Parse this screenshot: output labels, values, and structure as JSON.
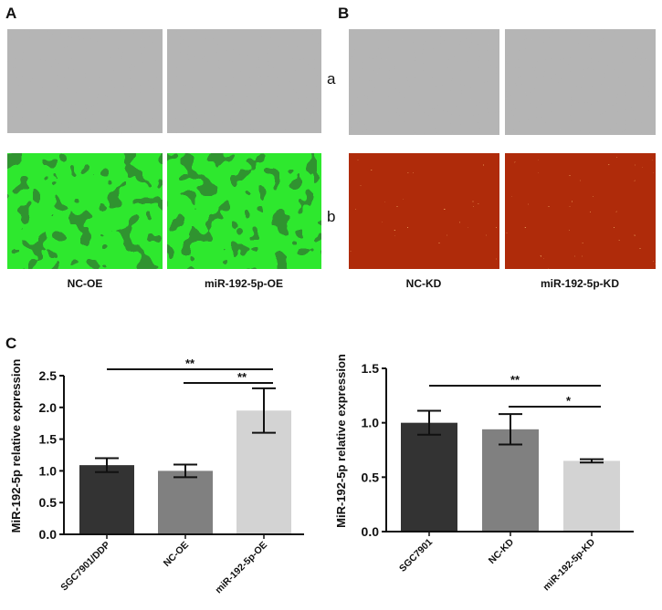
{
  "panels": {
    "A": "A",
    "B": "B",
    "C": "C",
    "row_a": "a",
    "row_b": "b"
  },
  "image_labels": [
    "NC-OE",
    "miR-192-5p-OE",
    "NC-KD",
    "miR-192-5p-KD"
  ],
  "colors": {
    "brightfield": "#b4b4b4",
    "gfp": "#2ee82e",
    "rfp": "#c8340c",
    "bar_dark": "#333333",
    "bar_mid": "#808080",
    "bar_light": "#d3d3d3"
  },
  "chart_data": [
    {
      "type": "bar",
      "title": "",
      "xlabel": "",
      "ylabel": "MiR-192-5p relative expression",
      "ylim": [
        0,
        2.5
      ],
      "yticks": [
        "0.0",
        "0.5",
        "1.0",
        "1.5",
        "2.0",
        "2.5"
      ],
      "categories": [
        "SGC7901/DDP",
        "NC-OE",
        "miR-192-5p-OE"
      ],
      "values": [
        1.09,
        1.0,
        1.95
      ],
      "error": [
        0.11,
        0.1,
        0.35
      ],
      "significance": [
        {
          "from": 0,
          "to": 2,
          "label": "**"
        },
        {
          "from": 1,
          "to": 2,
          "label": "**"
        }
      ],
      "grid": false
    },
    {
      "type": "bar",
      "title": "",
      "xlabel": "",
      "ylabel": "MiR-192-5p relative expression",
      "ylim": [
        0,
        1.5
      ],
      "yticks": [
        "0.0",
        "0.5",
        "1.0",
        "1.5"
      ],
      "categories": [
        "SGC7901",
        "NC-KD",
        "miR-192-5p-KD"
      ],
      "values": [
        1.0,
        0.94,
        0.65
      ],
      "error": [
        0.11,
        0.14,
        0.015
      ],
      "significance": [
        {
          "from": 0,
          "to": 2,
          "label": "**"
        },
        {
          "from": 1,
          "to": 2,
          "label": "*"
        }
      ],
      "grid": false
    }
  ]
}
